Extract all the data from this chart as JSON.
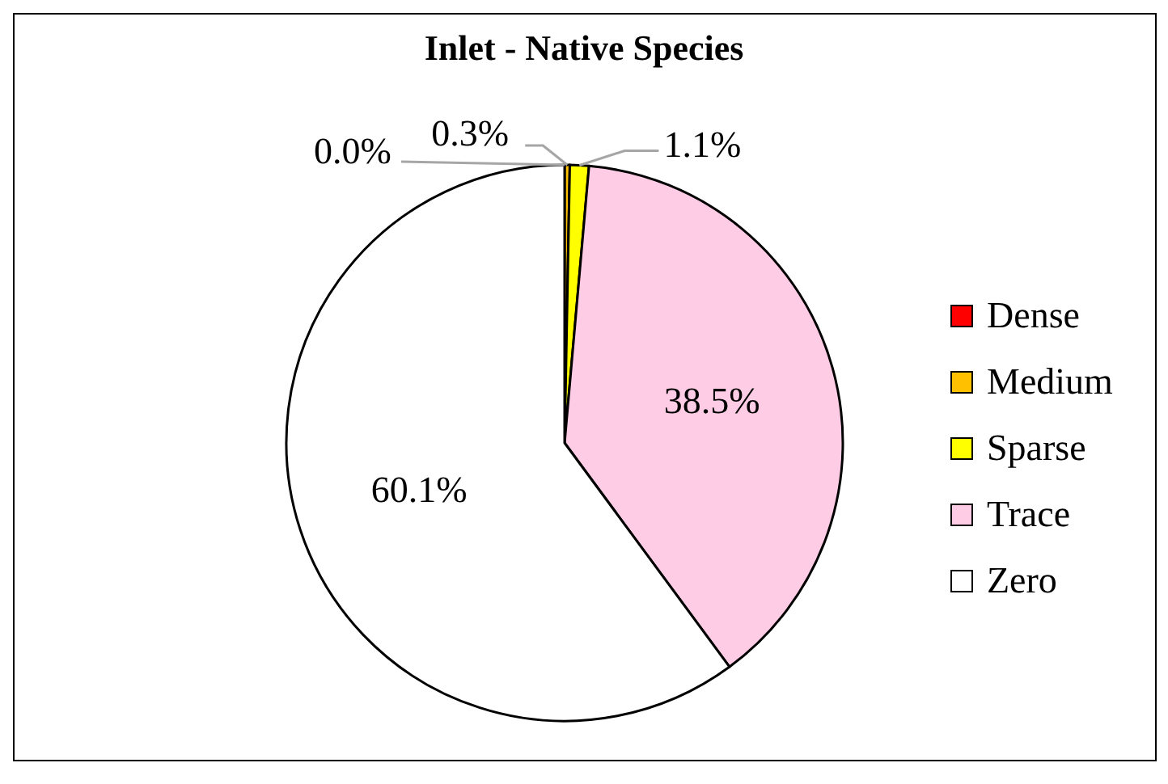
{
  "chart_data": {
    "type": "pie",
    "title": "Inlet - Native Species",
    "categories": [
      "Dense",
      "Medium",
      "Sparse",
      "Trace",
      "Zero"
    ],
    "values": [
      0.0,
      0.3,
      1.1,
      38.5,
      60.1
    ],
    "colors": [
      "#ff0000",
      "#ffc000",
      "#ffff00",
      "#ffcce5",
      "#ffffff"
    ],
    "value_labels": [
      "0.0%",
      "0.3%",
      "1.1%",
      "38.5%",
      "60.1%"
    ],
    "legend": "right"
  }
}
